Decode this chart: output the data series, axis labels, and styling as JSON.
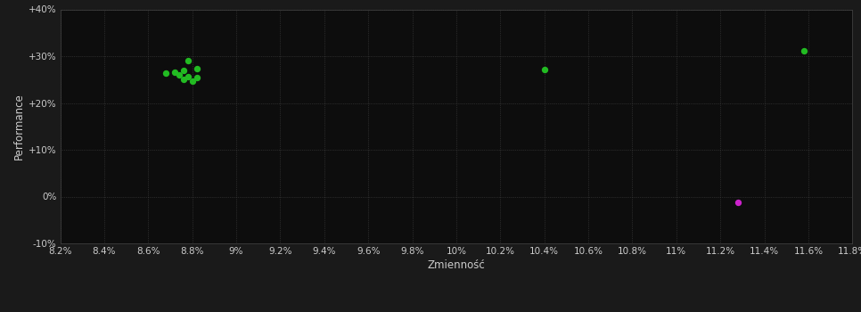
{
  "background_color": "#1a1a1a",
  "plot_bg_color": "#0d0d0d",
  "grid_color": "#444444",
  "text_color": "#cccccc",
  "xlabel": "Zmienność",
  "ylabel": "Performance",
  "xlim": [
    0.082,
    0.118
  ],
  "ylim": [
    -0.1,
    0.4
  ],
  "xticks": [
    0.082,
    0.084,
    0.086,
    0.088,
    0.09,
    0.092,
    0.094,
    0.096,
    0.098,
    0.1,
    0.102,
    0.104,
    0.106,
    0.108,
    0.11,
    0.112,
    0.114,
    0.116,
    0.118
  ],
  "xtick_labels": [
    "8.2%",
    "8.4%",
    "8.6%",
    "8.8%",
    "9%",
    "9.2%",
    "9.4%",
    "9.6%",
    "9.8%",
    "10%",
    "10.2%",
    "10.4%",
    "10.6%",
    "10.8%",
    "11%",
    "11.2%",
    "11.4%",
    "11.6%",
    "11.8%"
  ],
  "yticks": [
    -0.1,
    0.0,
    0.1,
    0.2,
    0.3,
    0.4
  ],
  "ytick_labels": [
    "-10%",
    "0%",
    "+10%",
    "+20%",
    "+30%",
    "+40%"
  ],
  "green_points": [
    [
      0.0878,
      0.291
    ],
    [
      0.0882,
      0.274
    ],
    [
      0.0876,
      0.27
    ],
    [
      0.0872,
      0.266
    ],
    [
      0.0868,
      0.263
    ],
    [
      0.0874,
      0.26
    ],
    [
      0.0878,
      0.257
    ],
    [
      0.0882,
      0.255
    ],
    [
      0.0876,
      0.25
    ],
    [
      0.088,
      0.247
    ],
    [
      0.104,
      0.271
    ],
    [
      0.1158,
      0.312
    ]
  ],
  "magenta_points": [
    [
      0.1128,
      -0.013
    ]
  ],
  "green_color": "#22bb22",
  "magenta_color": "#cc22cc",
  "marker_size": 28,
  "font_size_ticks": 7.5,
  "font_size_labels": 8.5
}
